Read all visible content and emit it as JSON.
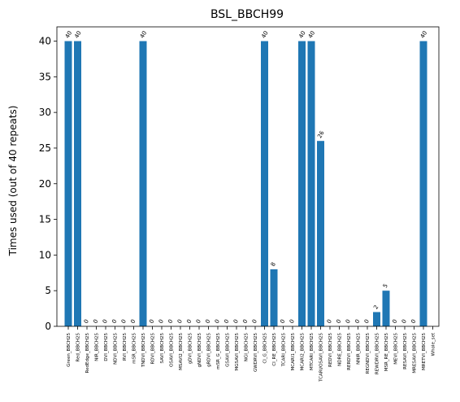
{
  "chart_data": {
    "type": "bar",
    "title": "BSL_BBCH99",
    "xlabel": "",
    "ylabel": "Times used (out of 40 repeats)",
    "ylim": [
      0,
      42
    ],
    "yticks": [
      0,
      5,
      10,
      15,
      20,
      25,
      30,
      35,
      40
    ],
    "grid": false,
    "bar_color": "#1f77b4",
    "categories": [
      "Green_BBCH25",
      "Red_BBCH25",
      "RedEdge_BBCH25",
      "NIR_BBCH25",
      "DVI_BBCH25",
      "NDVI_BBCH25",
      "RVI_BBCH25",
      "mSR_BBCH25",
      "TNDVI_BBCH25",
      "RDVI_BBCH25",
      "SAVI_BBCH25",
      "OSAVI_BBCH25",
      "MSAVI2_BBCH25",
      "gDVI_BBCH25",
      "gNDVI_BBCH25",
      "gRDVI_BBCH25",
      "mSR_G_BBCH25",
      "GSAVI_BBCH25",
      "MGSAVI_BBCH25",
      "NGI_BBCH25",
      "GWDRVI_BBCH25",
      "CI_G_BBCH25",
      "CI_RE_BBCH25",
      "TCARI_BBCH25",
      "MCARI1_BBCH25",
      "MCARI2_BBCH25",
      "MTCARI_BBCH25",
      "TCARI/OSAVI_BBCH25",
      "REDVI_BBCH25",
      "NDRE_BBCH25",
      "RERDVI_BBCH25",
      "NNIR_BBCH25",
      "REGNDVI_BBCH25",
      "REWDRVI_BBCH25",
      "MSR_RE_BBCH25",
      "MEVI_BBCH25",
      "RESAVI_BBCH25",
      "MRESAVI_BBCH25",
      "MRETVI_BBCH25",
      "Whole_set"
    ],
    "values": [
      40,
      40,
      0,
      0,
      0,
      0,
      0,
      0,
      40,
      0,
      0,
      0,
      0,
      0,
      0,
      0,
      0,
      0,
      0,
      0,
      0,
      40,
      8,
      0,
      0,
      40,
      40,
      26,
      0,
      0,
      0,
      0,
      0,
      2,
      5,
      0,
      0,
      0,
      40,
      null
    ],
    "data_labels": [
      "40",
      "40",
      "0",
      "0",
      "0",
      "0",
      "0",
      "0",
      "40",
      "0",
      "0",
      "0",
      "0",
      "0",
      "0",
      "0",
      "0",
      "0",
      "0",
      "0",
      "0",
      "40",
      "8",
      "0",
      "0",
      "40",
      "40",
      "26",
      "0",
      "0",
      "0",
      "0",
      "0",
      "2",
      "5",
      "0",
      "0",
      "0",
      "40",
      ""
    ]
  }
}
